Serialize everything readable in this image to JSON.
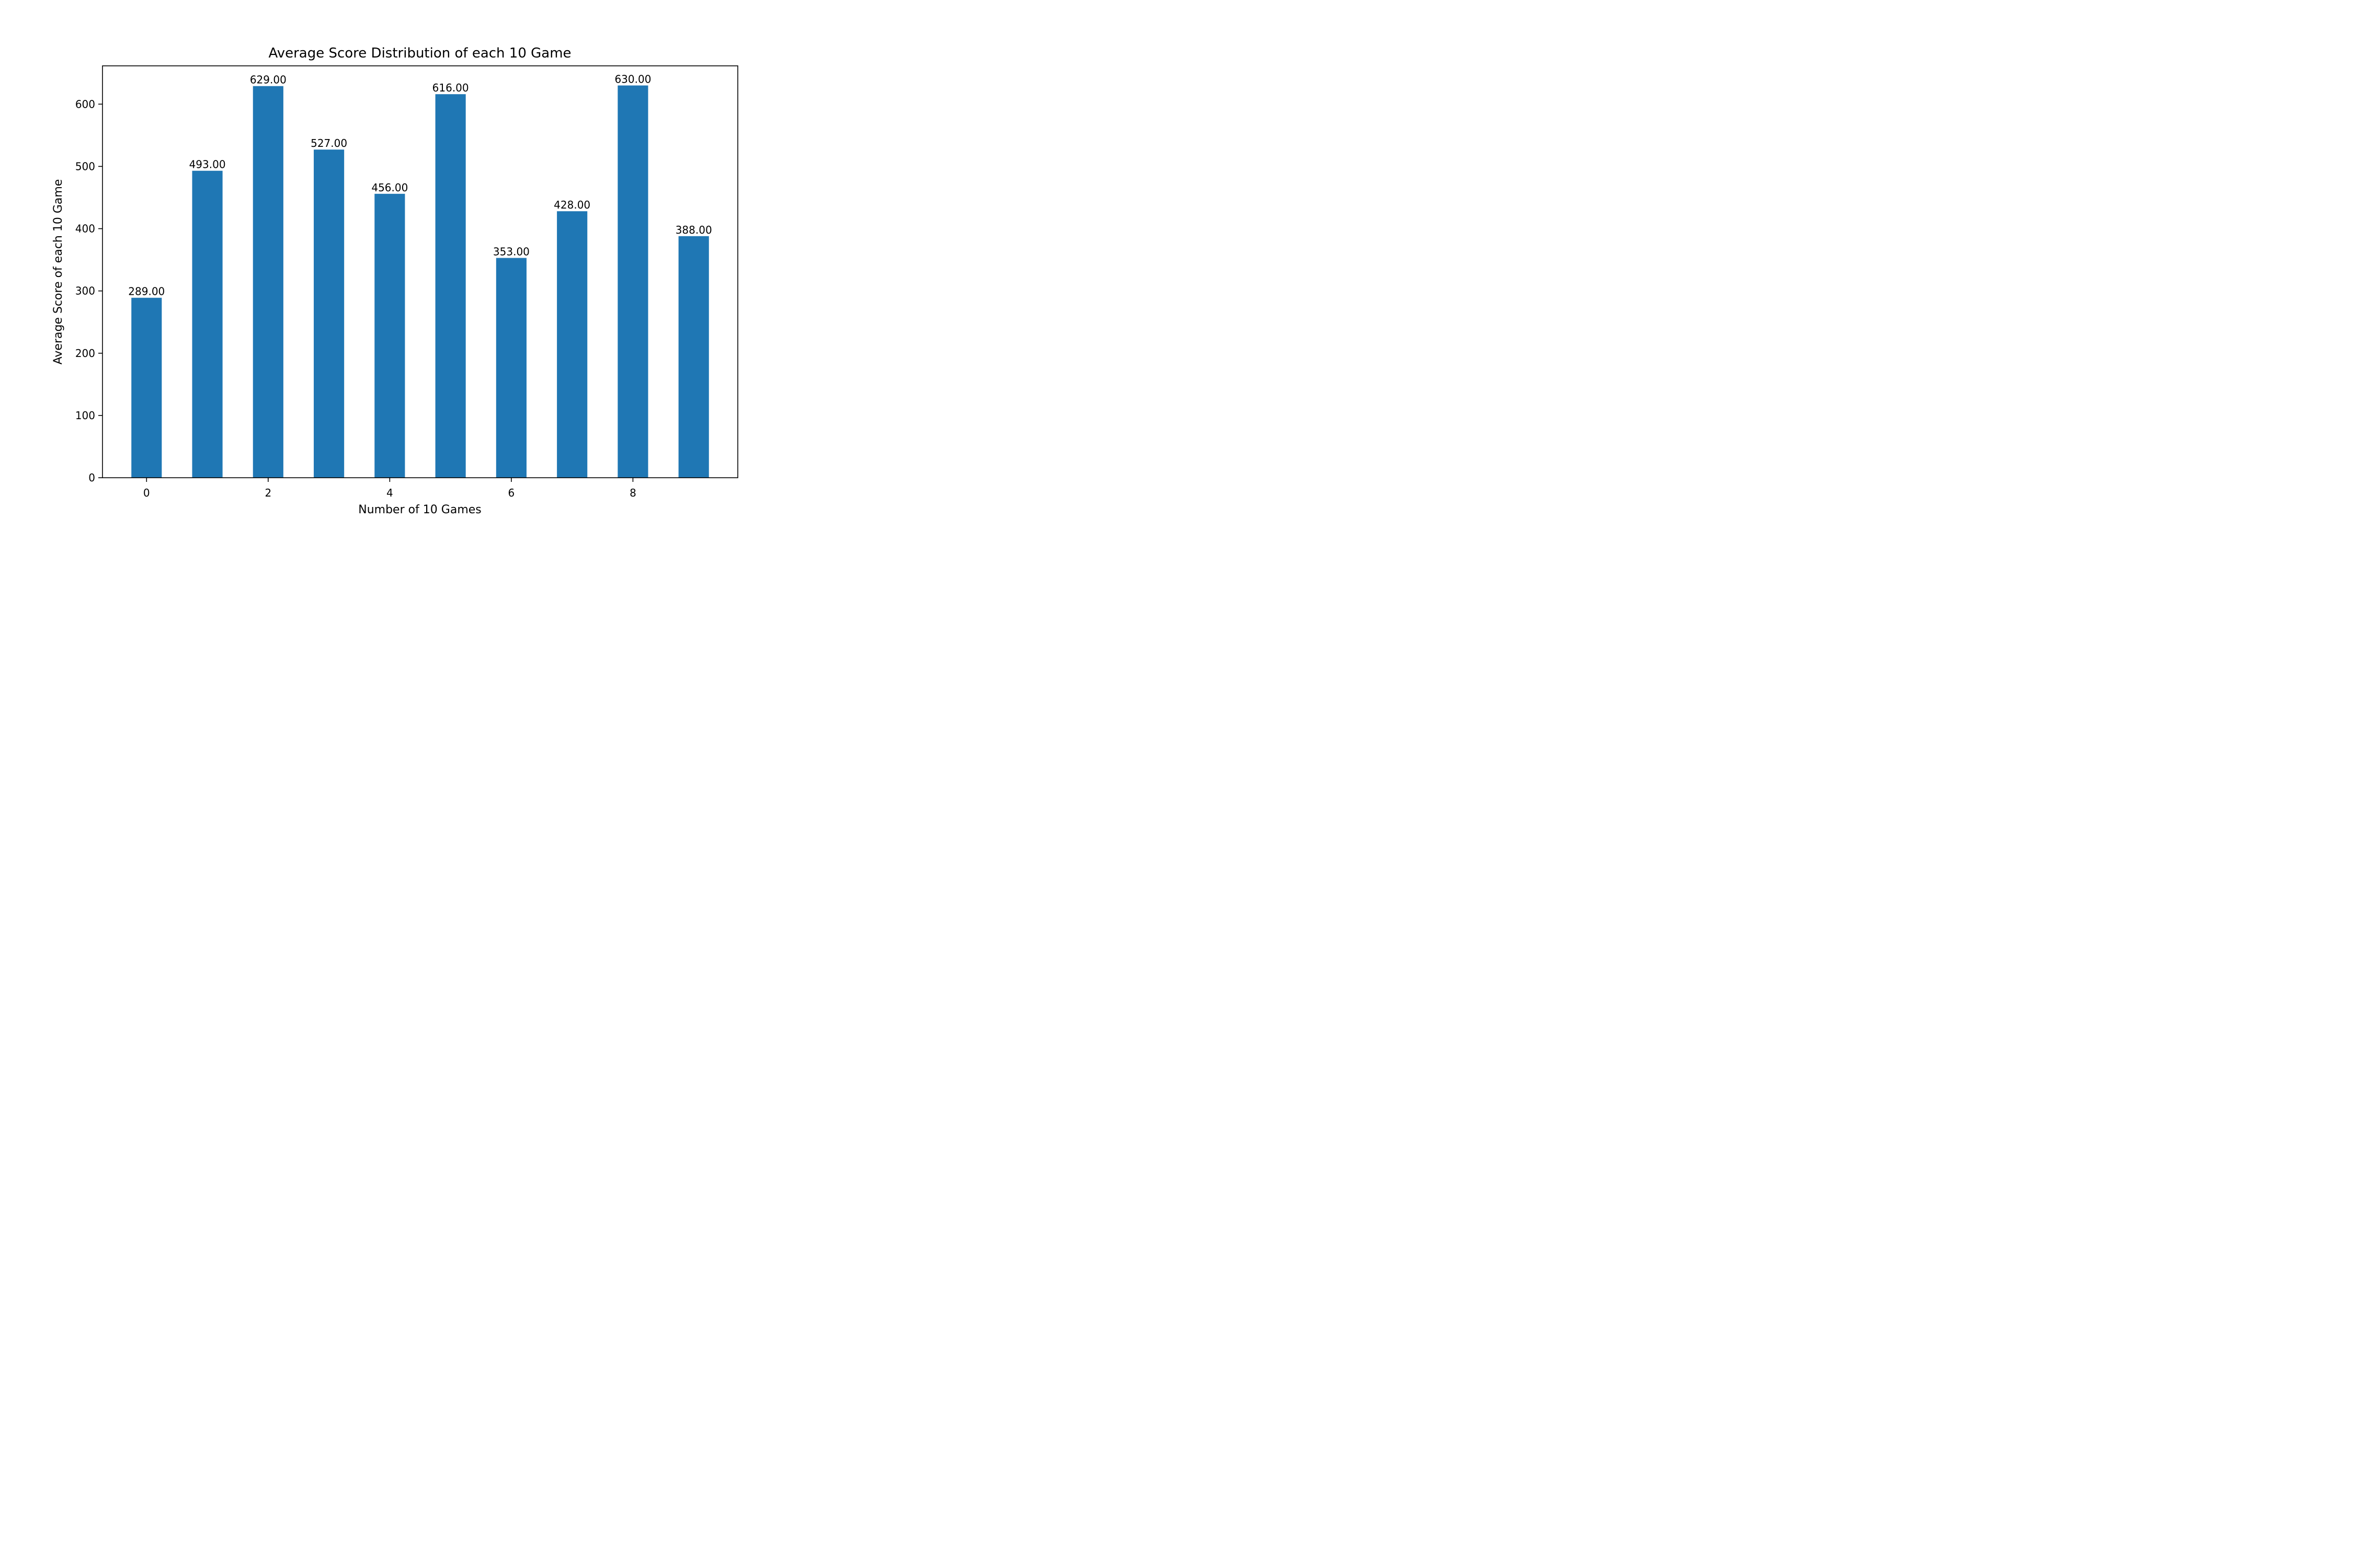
{
  "chart_data": {
    "type": "bar",
    "title": "Average Score Distribution of each 10 Game",
    "xlabel": "Number of 10 Games",
    "ylabel": "Average Score of each 10 Game",
    "categories": [
      0,
      1,
      2,
      3,
      4,
      5,
      6,
      7,
      8,
      9
    ],
    "values": [
      289,
      493,
      629,
      527,
      456,
      616,
      353,
      428,
      630,
      388
    ],
    "data_labels": [
      "289.00",
      "493.00",
      "629.00",
      "527.00",
      "456.00",
      "616.00",
      "353.00",
      "428.00",
      "630.00",
      "388.00"
    ],
    "xticks": [
      0,
      2,
      4,
      6,
      8
    ],
    "yticks": [
      0,
      100,
      200,
      300,
      400,
      500,
      600
    ],
    "xlim": [
      -0.725,
      9.725
    ],
    "ylim": [
      0,
      661.5
    ],
    "bar_color": "#1f77b4",
    "grid": false,
    "legend": "none"
  }
}
